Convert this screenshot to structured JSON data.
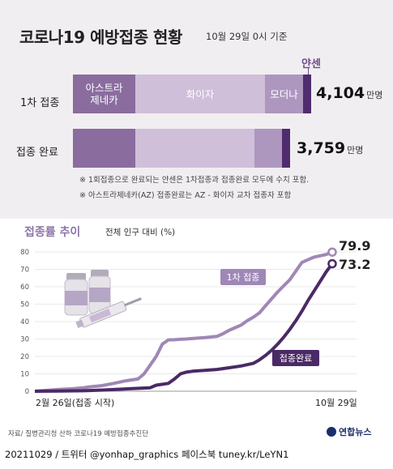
{
  "title": "코로나19 예방접종 현황",
  "as_of": "10월 29일 0시 기준",
  "bars": {
    "unit": "만명",
    "label_janssen": "얀센",
    "rows": [
      {
        "label": "1차 접종",
        "total": "4,104",
        "segments": [
          {
            "name": "아스트라제네카",
            "label_lines": [
              "아스트라",
              "제네카"
            ],
            "color": "#8a6c9f"
          },
          {
            "name": "화이자",
            "label_lines": [
              "화이자"
            ],
            "color": "#cfbfd9"
          },
          {
            "name": "모더나",
            "label_lines": [
              "모더나"
            ],
            "color": "#ae97bf"
          },
          {
            "name": "얀센",
            "label_lines": [
              ""
            ],
            "color": "#4f2c6d"
          }
        ]
      },
      {
        "label": "접종 완료",
        "total": "3,759",
        "segments": [
          {
            "name": "아스트라제네카",
            "label_lines": [
              ""
            ],
            "color": "#8a6c9f"
          },
          {
            "name": "화이자",
            "label_lines": [
              ""
            ],
            "color": "#cfbfd9"
          },
          {
            "name": "모더나",
            "label_lines": [
              ""
            ],
            "color": "#ae97bf"
          },
          {
            "name": "얀센",
            "label_lines": [
              ""
            ],
            "color": "#4f2c6d"
          }
        ]
      }
    ]
  },
  "notes": [
    "※ 1회접종으로 완료되는 얀센은 1차접종과 접종완료 모두에 수치 포함.",
    "※ 아스트라제네카(AZ) 접종완료는 AZ - 화이자 교차 접종자 포함"
  ],
  "chart": {
    "title": "접종률 추이",
    "subtitle": "전체 인구 대비 (%)",
    "x_start_label": "2월 26일(접종 시작)",
    "x_end_label": "10월 29일",
    "colors": {
      "first": "#9f87b6",
      "full": "#4a2a66"
    }
  },
  "chart_data": {
    "type": "line",
    "xlabel": "",
    "ylabel": "전체 인구 대비 (%)",
    "x_range": [
      "2월 26일",
      "10월 29일"
    ],
    "ylim": [
      0,
      80
    ],
    "yticks": [
      0,
      10,
      20,
      30,
      40,
      50,
      60,
      70,
      80
    ],
    "series": [
      {
        "name": "1차 접종",
        "end_value": "79.9",
        "x": [
          0,
          10,
          20,
          30,
          40,
          45,
          55,
          65,
          75,
          85,
          90,
          95,
          100,
          105,
          110,
          115,
          120,
          125,
          130,
          140,
          150,
          155,
          160,
          165,
          170,
          175,
          180,
          185,
          190,
          195,
          200,
          205,
          210,
          215,
          220,
          230,
          240,
          245
        ],
        "values": [
          0.0,
          0.5,
          1.0,
          1.4,
          2.0,
          2.5,
          3.2,
          4.5,
          6.0,
          7.0,
          10.0,
          15.0,
          20.0,
          27.0,
          29.5,
          29.6,
          29.8,
          30.0,
          30.3,
          30.8,
          31.5,
          33.0,
          35.0,
          36.5,
          38.0,
          40.5,
          42.5,
          45.0,
          49.0,
          53.0,
          57.0,
          60.5,
          64.0,
          69.0,
          74.0,
          77.0,
          78.5,
          79.9
        ]
      },
      {
        "name": "접종완료",
        "end_value": "73.2",
        "x": [
          0,
          20,
          40,
          60,
          80,
          95,
          100,
          110,
          115,
          120,
          125,
          130,
          140,
          150,
          160,
          170,
          180,
          185,
          190,
          195,
          200,
          205,
          210,
          215,
          220,
          225,
          230,
          235,
          240,
          245
        ],
        "values": [
          0.0,
          0.1,
          0.3,
          0.8,
          1.5,
          2.0,
          3.5,
          4.5,
          7.0,
          10.0,
          11.0,
          11.5,
          12.0,
          12.5,
          13.5,
          14.5,
          16.0,
          18.0,
          20.5,
          23.5,
          27.0,
          31.0,
          35.5,
          40.5,
          46.0,
          52.0,
          57.5,
          63.0,
          68.5,
          73.2
        ]
      }
    ]
  },
  "source": "자료/ 질병관리청 산하 코로나19 예방접종추진단",
  "footer": "20211029 / 트위터 @yonhap_graphics  페이스북 tuney.kr/LeYN1",
  "logo": "연합뉴스"
}
